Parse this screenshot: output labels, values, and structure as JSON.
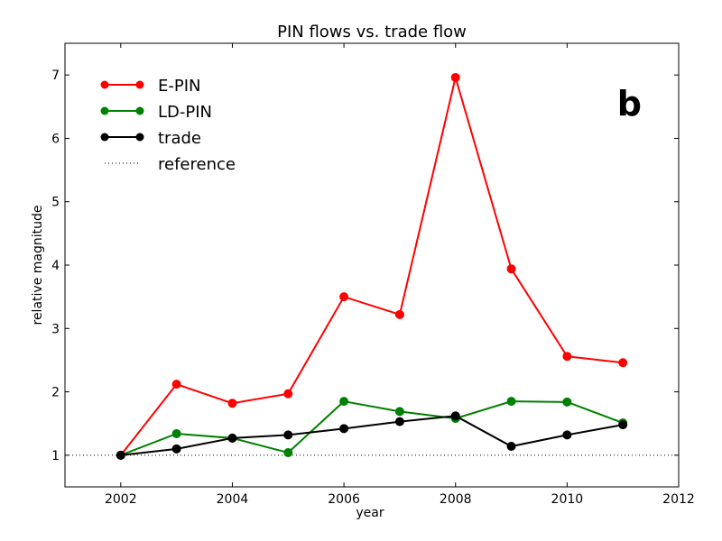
{
  "chart_data": {
    "type": "line",
    "title": "PIN flows vs. trade flow",
    "xlabel": "year",
    "ylabel": "relative magnitude",
    "panel_label": "b",
    "xlim": [
      2001,
      2012
    ],
    "ylim": [
      0.5,
      7.5
    ],
    "x_ticks": [
      2002,
      2004,
      2006,
      2008,
      2010,
      2012
    ],
    "y_ticks": [
      1,
      2,
      3,
      4,
      5,
      6,
      7
    ],
    "grid": false,
    "legend_position": "top-left",
    "x": [
      2002,
      2003,
      2004,
      2005,
      2006,
      2007,
      2008,
      2009,
      2010,
      2011
    ],
    "series": [
      {
        "name": "E-PIN",
        "color": "#ff0000",
        "style": "line-marker",
        "values": [
          1.0,
          2.12,
          1.82,
          1.97,
          3.5,
          3.22,
          6.96,
          3.94,
          2.56,
          2.46
        ]
      },
      {
        "name": "LD-PIN",
        "color": "#008000",
        "style": "line-marker",
        "values": [
          1.0,
          1.34,
          1.27,
          1.04,
          1.85,
          1.69,
          1.58,
          1.85,
          1.84,
          1.51
        ]
      },
      {
        "name": "trade",
        "color": "#000000",
        "style": "line-marker",
        "values": [
          1.0,
          1.1,
          1.27,
          1.32,
          1.42,
          1.53,
          1.62,
          1.14,
          1.32,
          1.48
        ]
      }
    ],
    "reference": {
      "name": "reference",
      "value": 1.0,
      "color": "#000000",
      "style": "dotted"
    }
  }
}
